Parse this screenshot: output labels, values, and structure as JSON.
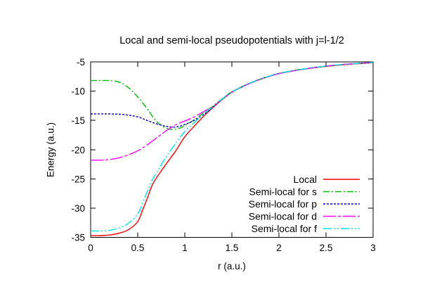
{
  "chart_data": {
    "type": "line",
    "title": "Local and semi-local pseudopotentials with j=l-1/2",
    "xlabel": "r (a.u.)",
    "ylabel": "Energy (a.u.)",
    "xlim": [
      0,
      3
    ],
    "ylim": [
      -35,
      -5
    ],
    "grid": false,
    "xtick_values": [
      0,
      0.5,
      1,
      1.5,
      2,
      2.5,
      3
    ],
    "xtick_labels": [
      "0",
      "0.5",
      "1",
      "1.5",
      "2",
      "2.5",
      "3"
    ],
    "ytick_values": [
      -5,
      -10,
      -15,
      -20,
      -25,
      -30,
      -35
    ],
    "ytick_labels": [
      "-5",
      "-10",
      "-15",
      "-20",
      "-25",
      "-30",
      "-35"
    ],
    "legend_position": "inside-bottom-right",
    "axis_color": "#000000",
    "series": [
      {
        "name": "Local",
        "color": "#ff0000",
        "dash": [],
        "points": [
          [
            0,
            -34.7
          ],
          [
            0.1,
            -34.7
          ],
          [
            0.2,
            -34.6
          ],
          [
            0.3,
            -34.3
          ],
          [
            0.4,
            -33.7
          ],
          [
            0.5,
            -32.3
          ],
          [
            0.55,
            -30.4
          ],
          [
            0.6,
            -28.4
          ],
          [
            0.65,
            -26.2
          ],
          [
            0.7,
            -24.8
          ],
          [
            0.8,
            -22.5
          ],
          [
            0.9,
            -20.3
          ],
          [
            1.0,
            -17.8
          ],
          [
            1.1,
            -16.0
          ],
          [
            1.2,
            -14.3
          ],
          [
            1.3,
            -12.8
          ],
          [
            1.4,
            -11.4
          ],
          [
            1.5,
            -10.2
          ],
          [
            1.6,
            -9.35
          ],
          [
            1.7,
            -8.6
          ],
          [
            1.8,
            -8.0
          ],
          [
            1.9,
            -7.45
          ],
          [
            2.0,
            -7.0
          ],
          [
            2.2,
            -6.4
          ],
          [
            2.4,
            -5.95
          ],
          [
            2.6,
            -5.6
          ],
          [
            2.8,
            -5.35
          ],
          [
            3.0,
            -5.15
          ]
        ]
      },
      {
        "name": "Semi-local for s",
        "color": "#00c400",
        "dash": [
          9,
          3,
          2,
          3
        ],
        "points": [
          [
            0,
            -8.2
          ],
          [
            0.1,
            -8.2
          ],
          [
            0.2,
            -8.2
          ],
          [
            0.3,
            -8.45
          ],
          [
            0.4,
            -9.4
          ],
          [
            0.5,
            -11.0
          ],
          [
            0.6,
            -13.0
          ],
          [
            0.7,
            -15.2
          ],
          [
            0.8,
            -16.3
          ],
          [
            0.87,
            -16.55
          ],
          [
            0.95,
            -16.3
          ],
          [
            1.0,
            -15.9
          ],
          [
            1.1,
            -14.9
          ],
          [
            1.2,
            -13.7
          ],
          [
            1.3,
            -12.55
          ],
          [
            1.4,
            -11.25
          ],
          [
            1.5,
            -10.1
          ],
          [
            1.6,
            -9.3
          ],
          [
            1.7,
            -8.55
          ],
          [
            1.8,
            -7.95
          ],
          [
            1.9,
            -7.45
          ],
          [
            2.0,
            -6.95
          ],
          [
            2.2,
            -6.35
          ],
          [
            2.4,
            -5.9
          ],
          [
            2.6,
            -5.55
          ],
          [
            2.8,
            -5.3
          ],
          [
            3.0,
            -5.1
          ]
        ]
      },
      {
        "name": "Semi-local for p",
        "color": "#0000cc",
        "dash": [
          3,
          2
        ],
        "points": [
          [
            0,
            -13.9
          ],
          [
            0.2,
            -13.9
          ],
          [
            0.35,
            -14.0
          ],
          [
            0.5,
            -14.4
          ],
          [
            0.6,
            -15.0
          ],
          [
            0.7,
            -15.6
          ],
          [
            0.8,
            -16.0
          ],
          [
            0.9,
            -16.15
          ],
          [
            1.0,
            -15.7
          ],
          [
            1.1,
            -15.0
          ],
          [
            1.2,
            -14.0
          ],
          [
            1.3,
            -12.7
          ],
          [
            1.4,
            -11.35
          ],
          [
            1.5,
            -10.15
          ],
          [
            1.6,
            -9.3
          ],
          [
            1.7,
            -8.6
          ],
          [
            1.8,
            -7.95
          ],
          [
            1.9,
            -7.45
          ],
          [
            2.0,
            -7.0
          ],
          [
            2.2,
            -6.4
          ],
          [
            2.4,
            -5.9
          ],
          [
            2.6,
            -5.55
          ],
          [
            2.8,
            -5.3
          ],
          [
            3.0,
            -5.1
          ]
        ]
      },
      {
        "name": "Semi-local for d",
        "color": "#ff00ff",
        "dash": [
          18,
          3,
          4,
          3
        ],
        "points": [
          [
            0,
            -21.8
          ],
          [
            0.1,
            -21.8
          ],
          [
            0.2,
            -21.7
          ],
          [
            0.3,
            -21.4
          ],
          [
            0.4,
            -20.9
          ],
          [
            0.5,
            -20.2
          ],
          [
            0.6,
            -19.2
          ],
          [
            0.7,
            -18.0
          ],
          [
            0.8,
            -16.8
          ],
          [
            0.9,
            -15.8
          ],
          [
            1.0,
            -15.1
          ],
          [
            1.1,
            -14.4
          ],
          [
            1.2,
            -13.5
          ],
          [
            1.3,
            -12.6
          ],
          [
            1.4,
            -11.3
          ],
          [
            1.5,
            -10.15
          ],
          [
            1.6,
            -9.3
          ],
          [
            1.7,
            -8.6
          ],
          [
            1.8,
            -7.95
          ],
          [
            1.9,
            -7.45
          ],
          [
            2.0,
            -7.0
          ],
          [
            2.2,
            -6.4
          ],
          [
            2.4,
            -5.9
          ],
          [
            2.6,
            -5.55
          ],
          [
            2.8,
            -5.3
          ],
          [
            3.0,
            -5.1
          ]
        ]
      },
      {
        "name": "Semi-local for f",
        "color": "#00e5e5",
        "dash": [
          12,
          3,
          2,
          3,
          2,
          3
        ],
        "points": [
          [
            0,
            -33.9
          ],
          [
            0.1,
            -33.9
          ],
          [
            0.2,
            -33.8
          ],
          [
            0.3,
            -33.4
          ],
          [
            0.4,
            -32.6
          ],
          [
            0.5,
            -31.0
          ],
          [
            0.55,
            -29.2
          ],
          [
            0.6,
            -27.2
          ],
          [
            0.65,
            -25.3
          ],
          [
            0.7,
            -23.9
          ],
          [
            0.8,
            -21.3
          ],
          [
            0.9,
            -19.0
          ],
          [
            1.0,
            -16.9
          ],
          [
            1.1,
            -15.4
          ],
          [
            1.2,
            -13.9
          ],
          [
            1.3,
            -12.65
          ],
          [
            1.4,
            -11.3
          ],
          [
            1.5,
            -10.15
          ],
          [
            1.6,
            -9.3
          ],
          [
            1.7,
            -8.55
          ],
          [
            1.8,
            -7.95
          ],
          [
            1.9,
            -7.4
          ],
          [
            2.0,
            -6.95
          ],
          [
            2.2,
            -6.35
          ],
          [
            2.4,
            -5.9
          ],
          [
            2.6,
            -5.55
          ],
          [
            2.8,
            -5.3
          ],
          [
            3.0,
            -5.1
          ]
        ]
      }
    ]
  }
}
